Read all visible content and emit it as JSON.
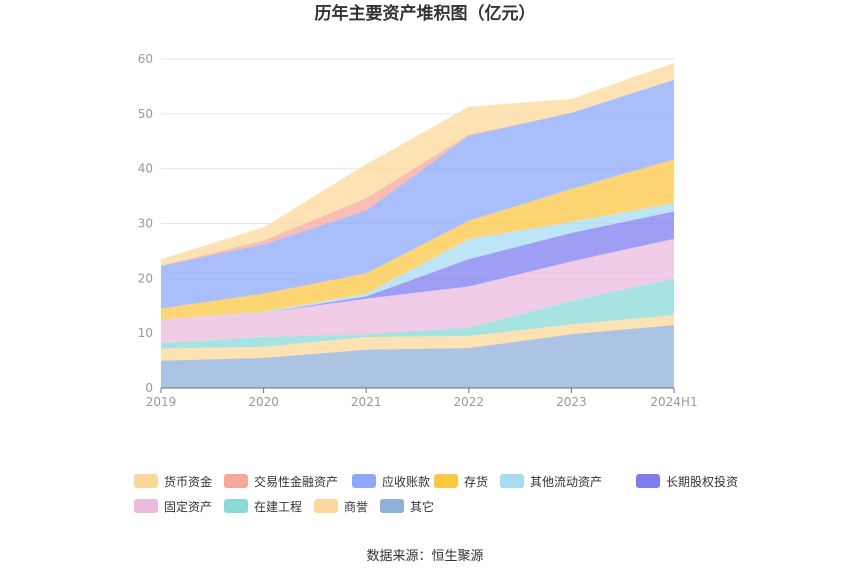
{
  "chart_data": {
    "type": "area",
    "stacked": true,
    "title": "历年主要资产堆积图（亿元）",
    "categories": [
      "2019",
      "2020",
      "2021",
      "2022",
      "2023",
      "2024H1"
    ],
    "yticks": [
      0,
      10,
      20,
      30,
      40,
      50,
      60
    ],
    "ylim": [
      0,
      60
    ],
    "grid": true,
    "legend_position": "bottom",
    "series": [
      {
        "name": "其它",
        "color": "#8fb0d9",
        "values": [
          5.0,
          5.5,
          7.0,
          7.3,
          9.8,
          11.5
        ]
      },
      {
        "name": "商誉",
        "color": "#fcd99a",
        "values": [
          2.2,
          2.0,
          2.3,
          2.2,
          1.8,
          1.8
        ]
      },
      {
        "name": "在建工程",
        "color": "#8ad9d6",
        "values": [
          1.0,
          1.8,
          0.5,
          1.5,
          4.3,
          6.7
        ]
      },
      {
        "name": "固定资产",
        "color": "#ebbbdd",
        "values": [
          4.3,
          4.4,
          6.5,
          7.5,
          7.2,
          7.2
        ]
      },
      {
        "name": "长期股权投资",
        "color": "#7c7ef0",
        "values": [
          0.0,
          0.0,
          0.4,
          5.0,
          5.2,
          5.0
        ]
      },
      {
        "name": "其他流动资产",
        "color": "#a8dcf3",
        "values": [
          0.0,
          0.2,
          0.5,
          3.7,
          2.0,
          1.5
        ]
      },
      {
        "name": "存货",
        "color": "#fcc844",
        "values": [
          2.0,
          3.3,
          3.7,
          3.3,
          6.0,
          8.0
        ]
      },
      {
        "name": "应收账款",
        "color": "#8ea8fb",
        "values": [
          7.8,
          9.0,
          11.5,
          15.5,
          13.9,
          14.5
        ]
      },
      {
        "name": "交易性金融资产",
        "color": "#f8a79b",
        "values": [
          0.0,
          0.7,
          2.2,
          0.2,
          0.0,
          0.0
        ]
      },
      {
        "name": "货币资金",
        "color": "#fcd99a",
        "values": [
          1.2,
          2.4,
          6.2,
          5.1,
          2.5,
          3.1
        ]
      }
    ],
    "legend_order": [
      "货币资金",
      "交易性金融资产",
      "应收账款",
      "存货",
      "其他流动资产",
      "长期股权投资",
      "固定资产",
      "在建工程",
      "商誉",
      "其它"
    ]
  },
  "footer": {
    "source": "数据来源：恒生聚源"
  }
}
